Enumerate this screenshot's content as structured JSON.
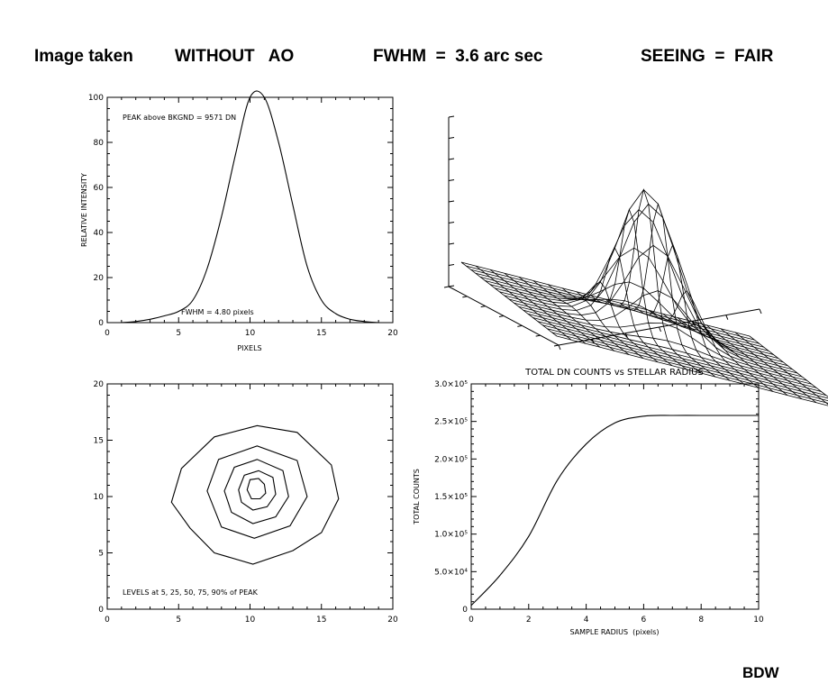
{
  "header": {
    "image_taken": "Image taken",
    "without_ao": "WITHOUT   AO",
    "fwhm": "FWHM  =  3.6 arc sec",
    "seeing": "SEEING  =  FAIR"
  },
  "signature": "BDW",
  "chart_data": [
    {
      "type": "line",
      "id": "profile",
      "title": "",
      "xlabel": "PIXELS",
      "ylabel": "RELATIVE INTENSITY",
      "xlim": [
        0,
        20
      ],
      "ylim": [
        0,
        100
      ],
      "xticks": [
        "0",
        "5",
        "10",
        "15",
        "20"
      ],
      "yticks": [
        "0",
        "20",
        "40",
        "60",
        "80",
        "100"
      ],
      "annotations": [
        "PEAK above BKGND = 9571 DN",
        "FWHM = 4.80 pixels"
      ],
      "x": [
        1,
        2,
        3,
        4,
        5,
        6,
        7,
        8,
        9,
        10,
        11,
        12,
        13,
        14,
        15,
        16,
        17,
        18,
        19
      ],
      "y": [
        0,
        0.5,
        1.5,
        3,
        5,
        10,
        24,
        47,
        75,
        100,
        100,
        80,
        52,
        25,
        10,
        4,
        1.5,
        0.5,
        0
      ]
    },
    {
      "type": "surface",
      "id": "psf_surface",
      "title": "",
      "grid": 21,
      "fwhm_pixels": 4.8
    },
    {
      "type": "contour",
      "id": "contours",
      "title": "",
      "xlim": [
        0,
        20
      ],
      "ylim": [
        0,
        20
      ],
      "xticks": [
        "0",
        "5",
        "10",
        "15",
        "20"
      ],
      "yticks": [
        "0",
        "5",
        "10",
        "15",
        "20"
      ],
      "annotation": "LEVELS at 5, 25, 50, 75, 90% of PEAK",
      "levels": [
        {
          "pct": 5,
          "points": [
            [
              4.5,
              9.5
            ],
            [
              5.2,
              12.5
            ],
            [
              7.5,
              15.3
            ],
            [
              10.5,
              16.3
            ],
            [
              13.3,
              15.7
            ],
            [
              15.7,
              12.8
            ],
            [
              16.2,
              9.8
            ],
            [
              15,
              6.8
            ],
            [
              13,
              5.2
            ],
            [
              10.2,
              4
            ],
            [
              7.5,
              5
            ],
            [
              5.8,
              7.2
            ]
          ]
        },
        {
          "pct": 25,
          "points": [
            [
              7,
              10.5
            ],
            [
              7.8,
              13.3
            ],
            [
              10.5,
              14.5
            ],
            [
              13.3,
              13.2
            ],
            [
              14,
              10
            ],
            [
              12.8,
              7.4
            ],
            [
              10.3,
              6.3
            ],
            [
              8,
              7.3
            ]
          ]
        },
        {
          "pct": 50,
          "points": [
            [
              8.2,
              10.5
            ],
            [
              8.9,
              12.6
            ],
            [
              10.5,
              13.3
            ],
            [
              12.3,
              12.3
            ],
            [
              12.7,
              10
            ],
            [
              11.8,
              8.2
            ],
            [
              10.2,
              7.6
            ],
            [
              8.7,
              8.6
            ]
          ]
        },
        {
          "pct": 75,
          "points": [
            [
              9.2,
              10.6
            ],
            [
              9.6,
              11.9
            ],
            [
              10.6,
              12.3
            ],
            [
              11.6,
              11.7
            ],
            [
              11.8,
              10.2
            ],
            [
              11.2,
              9.1
            ],
            [
              10.2,
              8.8
            ],
            [
              9.4,
              9.5
            ]
          ]
        },
        {
          "pct": 90,
          "points": [
            [
              9.8,
              10.6
            ],
            [
              10,
              11.5
            ],
            [
              10.6,
              11.6
            ],
            [
              11,
              11.1
            ],
            [
              11.1,
              10.3
            ],
            [
              10.7,
              9.8
            ],
            [
              10.1,
              9.8
            ]
          ]
        }
      ]
    },
    {
      "type": "line",
      "id": "encircled",
      "title": "TOTAL DN COUNTS vs STELLAR RADIUS",
      "xlabel": "SAMPLE RADIUS  (pixels)",
      "ylabel": "TOTAL COUNTS",
      "xlim": [
        0,
        10
      ],
      "ylim": [
        0,
        300000
      ],
      "xticks": [
        "0",
        "2",
        "4",
        "6",
        "8",
        "10"
      ],
      "yticks": [
        "0",
        "5.0×10⁴",
        "1.0×10⁵",
        "1.5×10⁵",
        "2.0×10⁵",
        "2.5×10⁵",
        "3.0×10⁵"
      ],
      "x": [
        0,
        1,
        2,
        3,
        4,
        5,
        6,
        7,
        8,
        9,
        10
      ],
      "y": [
        5000,
        45000,
        97000,
        172000,
        220000,
        248000,
        257000,
        258000,
        258000,
        258000,
        258000
      ]
    }
  ]
}
